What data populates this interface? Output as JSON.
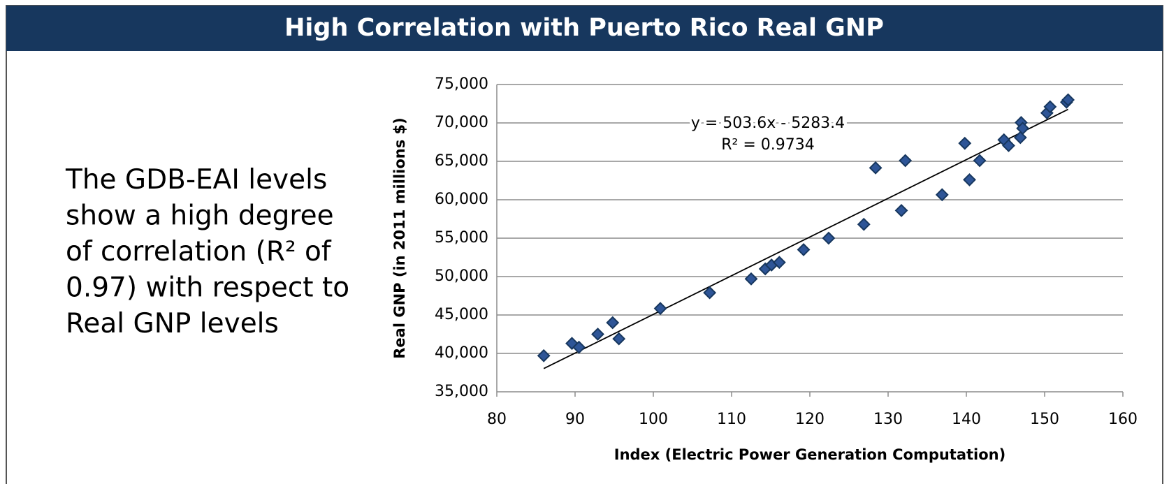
{
  "header": {
    "title": "High Correlation with Puerto Rico Real GNP"
  },
  "body": {
    "lines": [
      "The GDB-EAI levels",
      "show a high degree",
      "of correlation (R² of",
      "0.97) with respect to",
      "Real GNP levels"
    ]
  },
  "chart_data": {
    "type": "scatter",
    "x_label": "Index (Electric Power Generation Computation)",
    "y_label": "Real GNP (in 2011 millions $)",
    "x": [
      86.0,
      89.6,
      90.5,
      92.9,
      94.8,
      95.6,
      100.9,
      107.2,
      112.5,
      114.3,
      115.1,
      116.1,
      119.2,
      122.4,
      126.9,
      128.4,
      131.7,
      132.2,
      136.9,
      139.8,
      140.4,
      141.7,
      144.8,
      145.4,
      146.9,
      147.0,
      147.2,
      150.3,
      150.7,
      152.8,
      153.0
    ],
    "values": [
      39700,
      41300,
      40800,
      42500,
      44000,
      41900,
      45850,
      47900,
      49700,
      51000,
      51500,
      51850,
      53500,
      55000,
      56800,
      64150,
      58600,
      65100,
      60650,
      67350,
      62600,
      65100,
      67800,
      67050,
      68100,
      70050,
      69300,
      71300,
      72100,
      72700,
      73000
    ],
    "color": "#2e5597",
    "edge_color": "#17375e",
    "trendline": {
      "slope": 503.6,
      "intercept": -5283.4,
      "equation_label": "y = 503.6x - 5283.4",
      "r2_label": "R² = 0.9734",
      "color": "#000000"
    },
    "xlim": [
      80,
      160
    ],
    "xticks": [
      80,
      90,
      100,
      110,
      120,
      130,
      140,
      150,
      160
    ],
    "ylim": [
      35000,
      75000
    ],
    "yticks": [
      {
        "value": 35000,
        "label": "35,000"
      },
      {
        "value": 40000,
        "label": "40,000"
      },
      {
        "value": 45000,
        "label": "45,000"
      },
      {
        "value": 50000,
        "label": "50,000"
      },
      {
        "value": 55000,
        "label": "55,000"
      },
      {
        "value": 60000,
        "label": "60,000"
      },
      {
        "value": 65000,
        "label": "65,000"
      },
      {
        "value": 70000,
        "label": "70,000"
      },
      {
        "value": 75000,
        "label": "75,000"
      }
    ],
    "grid": true
  }
}
